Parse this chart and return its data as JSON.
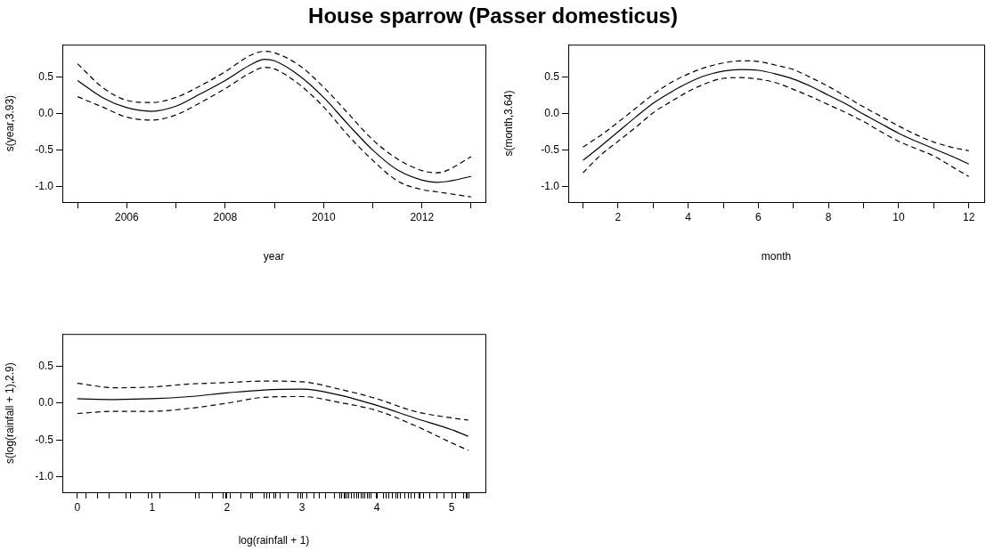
{
  "chart_data": [
    {
      "type": "line",
      "title": "House sparrow (Passer domesticus)",
      "xlabel": "year",
      "ylabel": "s(year,3.93)",
      "xlim": [
        2004.69,
        2013.29
      ],
      "ylim": [
        -1.21,
        0.94
      ],
      "xticks": [
        {
          "value": 2005,
          "label": null
        },
        {
          "value": 2006,
          "label": "2006"
        },
        {
          "value": 2007,
          "label": null
        },
        {
          "value": 2008,
          "label": "2008"
        },
        {
          "value": 2009,
          "label": null
        },
        {
          "value": 2010,
          "label": "2010"
        },
        {
          "value": 2011,
          "label": null
        },
        {
          "value": 2012,
          "label": "2012"
        },
        {
          "value": 2013,
          "label": null
        }
      ],
      "yticks": [
        {
          "value": -1,
          "label": "-1.0"
        },
        {
          "value": -0.5,
          "label": "-0.5"
        },
        {
          "value": 0,
          "label": "0.0"
        },
        {
          "value": 0.5,
          "label": "0.5"
        }
      ],
      "grid": false,
      "legend": false,
      "series": [
        {
          "color": "#000000",
          "line_style": "solid",
          "x": [
            2005,
            2005.5,
            2006,
            2006.5,
            2007,
            2007.5,
            2008,
            2008.5,
            2008.8,
            2009,
            2009.5,
            2010,
            2010.5,
            2011,
            2011.5,
            2012,
            2012.3,
            2012.5,
            2013
          ],
          "values": [
            0.45,
            0.22,
            0.08,
            0.03,
            0.1,
            0.27,
            0.45,
            0.66,
            0.74,
            0.72,
            0.52,
            0.22,
            -0.15,
            -0.5,
            -0.77,
            -0.91,
            -0.94,
            -0.93,
            -0.86
          ]
        },
        {
          "color": "#000000",
          "line_style": "dashed",
          "x": [
            2005,
            2005.5,
            2006,
            2006.5,
            2007,
            2007.5,
            2008,
            2008.5,
            2008.8,
            2009,
            2009.5,
            2010,
            2010.5,
            2011,
            2011.5,
            2012,
            2012.3,
            2012.5,
            2013
          ],
          "values": [
            0.68,
            0.36,
            0.18,
            0.15,
            0.22,
            0.38,
            0.57,
            0.79,
            0.85,
            0.83,
            0.66,
            0.36,
            0.0,
            -0.36,
            -0.62,
            -0.78,
            -0.81,
            -0.78,
            -0.59
          ]
        },
        {
          "color": "#000000",
          "line_style": "dashed",
          "x": [
            2005,
            2005.5,
            2006,
            2006.5,
            2007,
            2007.5,
            2008,
            2008.5,
            2008.8,
            2009,
            2009.5,
            2010,
            2010.5,
            2011,
            2011.5,
            2012,
            2012.3,
            2012.5,
            2013
          ],
          "values": [
            0.23,
            0.09,
            -0.05,
            -0.09,
            -0.02,
            0.15,
            0.34,
            0.55,
            0.63,
            0.61,
            0.4,
            0.09,
            -0.3,
            -0.64,
            -0.92,
            -1.04,
            -1.07,
            -1.09,
            -1.14
          ]
        }
      ]
    },
    {
      "type": "line",
      "xlabel": "month",
      "ylabel": "s(month,3.64)",
      "xlim": [
        0.58,
        12.44
      ],
      "ylim": [
        -1.21,
        0.94
      ],
      "xticks": [
        {
          "value": 1,
          "label": null
        },
        2,
        {
          "value": 3,
          "label": null
        },
        4,
        {
          "value": 5,
          "label": null
        },
        6,
        {
          "value": 7,
          "label": null
        },
        8,
        {
          "value": 9,
          "label": null
        },
        10,
        {
          "value": 11,
          "label": null
        },
        12
      ],
      "yticks": [
        {
          "value": -1,
          "label": "-1.0"
        },
        {
          "value": -0.5,
          "label": "-0.5"
        },
        {
          "value": 0,
          "label": "0.0"
        },
        {
          "value": 0.5,
          "label": "0.5"
        }
      ],
      "grid": false,
      "legend": false,
      "series": [
        {
          "color": "#000000",
          "line_style": "solid",
          "x": [
            1,
            1.5,
            2,
            2.5,
            3,
            3.5,
            4,
            4.5,
            5,
            5.5,
            6,
            6.5,
            7,
            7.5,
            8,
            8.5,
            9,
            9.5,
            10,
            10.5,
            11,
            11.5,
            12
          ],
          "values": [
            -0.64,
            -0.45,
            -0.25,
            -0.05,
            0.14,
            0.29,
            0.42,
            0.52,
            0.58,
            0.6,
            0.59,
            0.54,
            0.47,
            0.37,
            0.25,
            0.13,
            -0.01,
            -0.14,
            -0.27,
            -0.38,
            -0.48,
            -0.58,
            -0.69
          ]
        },
        {
          "color": "#000000",
          "line_style": "dashed",
          "x": [
            1,
            1.5,
            2,
            2.5,
            3,
            3.5,
            4,
            4.5,
            5,
            5.5,
            6,
            6.5,
            7,
            7.5,
            8,
            8.5,
            9,
            9.5,
            10,
            10.5,
            11,
            11.5,
            12
          ],
          "values": [
            -0.46,
            -0.3,
            -0.12,
            0.07,
            0.26,
            0.42,
            0.54,
            0.63,
            0.69,
            0.72,
            0.71,
            0.66,
            0.6,
            0.49,
            0.37,
            0.23,
            0.09,
            -0.04,
            -0.17,
            -0.29,
            -0.39,
            -0.46,
            -0.51
          ]
        },
        {
          "color": "#000000",
          "line_style": "dashed",
          "x": [
            1,
            1.5,
            2,
            2.5,
            3,
            3.5,
            4,
            4.5,
            5,
            5.5,
            6,
            6.5,
            7,
            7.5,
            8,
            8.5,
            9,
            9.5,
            10,
            10.5,
            11,
            11.5,
            12
          ],
          "values": [
            -0.81,
            -0.57,
            -0.38,
            -0.19,
            0.01,
            0.16,
            0.3,
            0.41,
            0.48,
            0.49,
            0.47,
            0.42,
            0.33,
            0.23,
            0.12,
            0.01,
            -0.11,
            -0.25,
            -0.38,
            -0.48,
            -0.58,
            -0.72,
            -0.86
          ]
        }
      ]
    },
    {
      "type": "line",
      "xlabel": "log(rainfall + 1)",
      "ylabel": "s(log(rainfall + 1),2.9)",
      "xlim": [
        -0.2,
        5.45
      ],
      "ylim": [
        -1.21,
        0.94
      ],
      "xticks": [
        0,
        {
          "value": 0.11,
          "label": null
        },
        {
          "value": 0.27,
          "label": null
        },
        {
          "value": 0.42,
          "label": null
        },
        {
          "value": 0.65,
          "label": null
        },
        {
          "value": 0.71,
          "label": null
        },
        {
          "value": 0.95,
          "label": null
        },
        1,
        {
          "value": 1.1,
          "label": null
        },
        {
          "value": 1.58,
          "label": null
        },
        {
          "value": 1.62,
          "label": null
        },
        {
          "value": 1.81,
          "label": null
        },
        {
          "value": 1.95,
          "label": null
        },
        {
          "value": 1.98,
          "label": null
        },
        2,
        {
          "value": 2.04,
          "label": null
        },
        {
          "value": 2.19,
          "label": null
        },
        {
          "value": 2.31,
          "label": null
        },
        {
          "value": 2.34,
          "label": null
        },
        {
          "value": 2.49,
          "label": null
        },
        {
          "value": 2.53,
          "label": null
        },
        {
          "value": 2.56,
          "label": null
        },
        {
          "value": 2.62,
          "label": null
        },
        {
          "value": 2.65,
          "label": null
        },
        {
          "value": 2.71,
          "label": null
        },
        {
          "value": 2.81,
          "label": null
        },
        {
          "value": 2.95,
          "label": null
        },
        {
          "value": 2.98,
          "label": null
        },
        3,
        {
          "value": 3.07,
          "label": null
        },
        {
          "value": 3.16,
          "label": null
        },
        {
          "value": 3.23,
          "label": null
        },
        {
          "value": 3.32,
          "label": null
        },
        {
          "value": 3.43,
          "label": null
        },
        {
          "value": 3.51,
          "label": null
        },
        {
          "value": 3.53,
          "label": null
        },
        {
          "value": 3.56,
          "label": null
        },
        {
          "value": 3.58,
          "label": null
        },
        {
          "value": 3.6,
          "label": null
        },
        {
          "value": 3.63,
          "label": null
        },
        {
          "value": 3.66,
          "label": null
        },
        {
          "value": 3.7,
          "label": null
        },
        {
          "value": 3.73,
          "label": null
        },
        {
          "value": 3.76,
          "label": null
        },
        {
          "value": 3.79,
          "label": null
        },
        {
          "value": 3.81,
          "label": null
        },
        {
          "value": 3.84,
          "label": null
        },
        {
          "value": 3.87,
          "label": null
        },
        {
          "value": 3.9,
          "label": null
        },
        {
          "value": 3.92,
          "label": null
        },
        {
          "value": 3.99,
          "label": null
        },
        4,
        {
          "value": 4.09,
          "label": null
        },
        {
          "value": 4.12,
          "label": null
        },
        {
          "value": 4.16,
          "label": null
        },
        {
          "value": 4.21,
          "label": null
        },
        {
          "value": 4.25,
          "label": null
        },
        {
          "value": 4.28,
          "label": null
        },
        {
          "value": 4.31,
          "label": null
        },
        {
          "value": 4.37,
          "label": null
        },
        {
          "value": 4.42,
          "label": null
        },
        {
          "value": 4.46,
          "label": null
        },
        {
          "value": 4.51,
          "label": null
        },
        {
          "value": 4.56,
          "label": null
        },
        {
          "value": 4.58,
          "label": null
        },
        {
          "value": 4.62,
          "label": null
        },
        {
          "value": 4.71,
          "label": null
        },
        {
          "value": 4.8,
          "label": null
        },
        {
          "value": 4.9,
          "label": null
        },
        5,
        {
          "value": 5.05,
          "label": null
        },
        {
          "value": 5.16,
          "label": null
        },
        {
          "value": 5.19,
          "label": null
        },
        {
          "value": 5.21,
          "label": null
        },
        {
          "value": 5.23,
          "label": null
        }
      ],
      "yticks": [
        {
          "value": -1,
          "label": "-1.0"
        },
        {
          "value": -0.5,
          "label": "-0.5"
        },
        {
          "value": 0,
          "label": "0.0"
        },
        {
          "value": 0.5,
          "label": "0.5"
        }
      ],
      "grid": false,
      "legend": false,
      "series": [
        {
          "color": "#000000",
          "line_style": "solid",
          "x": [
            0,
            0.5,
            1,
            1.5,
            2,
            2.5,
            3,
            3.5,
            4,
            4.5,
            5,
            5.22
          ],
          "values": [
            0.06,
            0.05,
            0.06,
            0.09,
            0.14,
            0.18,
            0.19,
            0.11,
            -0.03,
            -0.2,
            -0.36,
            -0.45
          ]
        },
        {
          "color": "#000000",
          "line_style": "dashed",
          "x": [
            0,
            0.5,
            1,
            1.5,
            2,
            2.5,
            3,
            3.5,
            4,
            4.5,
            5,
            5.22
          ],
          "values": [
            0.27,
            0.21,
            0.22,
            0.26,
            0.28,
            0.3,
            0.29,
            0.19,
            0.06,
            -0.11,
            -0.2,
            -0.23
          ]
        },
        {
          "color": "#000000",
          "line_style": "dashed",
          "x": [
            0,
            0.5,
            1,
            1.5,
            2,
            2.5,
            3,
            3.5,
            4,
            4.5,
            5,
            5.22
          ],
          "values": [
            -0.14,
            -0.11,
            -0.11,
            -0.07,
            0.0,
            0.08,
            0.09,
            0.01,
            -0.1,
            -0.3,
            -0.54,
            -0.64
          ]
        }
      ]
    }
  ]
}
